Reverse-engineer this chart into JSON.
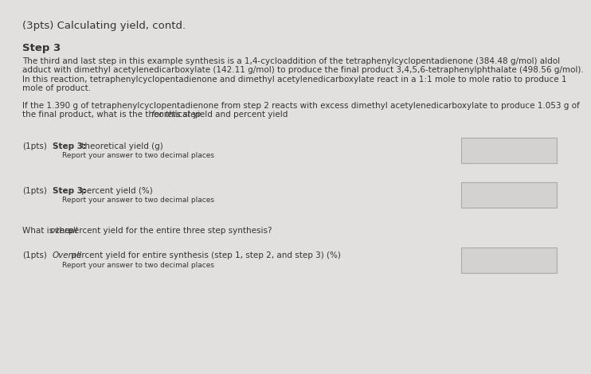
{
  "background_color": "#e2e0de",
  "title": "(3pts) Calculating yield, contd.",
  "step_header": "Step 3",
  "para1_line1": "The third and last step in this example synthesis is a 1,4-cycloaddition of the tetraphenylcyclopentadienone (384.48 g/mol) aldol",
  "para1_line2": "adduct with dimethyl acetylenedicarboxylate (142.11 g/mol) to produce the final product 3,4,5,6-tetraphenylphthalate (498.56 g/mol).",
  "para1_line3": "In this reaction, tetraphenylcyclopentadienone and dimethyl acetylenedicarboxylate react in a 1:1 mole to mole ratio to produce 1",
  "para1_line4": "mole of product.",
  "para2_line1": "If the 1.390 g of tetraphenylcyclopentadienone from step 2 reacts with excess dimethyl acetylenedicarboxylate to produce 1.053 g of",
  "para2_line2_plain": "the final product, what is the theoretical yield and percent yield ",
  "para2_line2_italic": "for this step.",
  "q1_pts": "(1pts)",
  "q1_bold": "Step 3:",
  "q1_text": " theoretical yield (g)",
  "q1_sub": "Report your answer to two decimal places",
  "q2_pts": "(1pts)",
  "q2_bold": "Step 3:",
  "q2_text": " percent yield (%)",
  "q2_sub": "Report your answer to two decimal places",
  "para3_pre": "What is the ",
  "para3_italic": "overall",
  "para3_post": " percent yield for the entire three step synthesis?",
  "q3_pts": "(1pts)",
  "q3_italic": "Overall",
  "q3_text": " percent yield for entire synthesis (step 1, step 2, and step 3) (%)",
  "q3_sub": "Report your answer to two decimal places",
  "text_color": "#333333",
  "box_facecolor": "#d4d2d0",
  "box_edgecolor": "#aaaaaa",
  "title_fs": 9.5,
  "step_fs": 9.5,
  "body_fs": 7.5,
  "small_fs": 6.5
}
